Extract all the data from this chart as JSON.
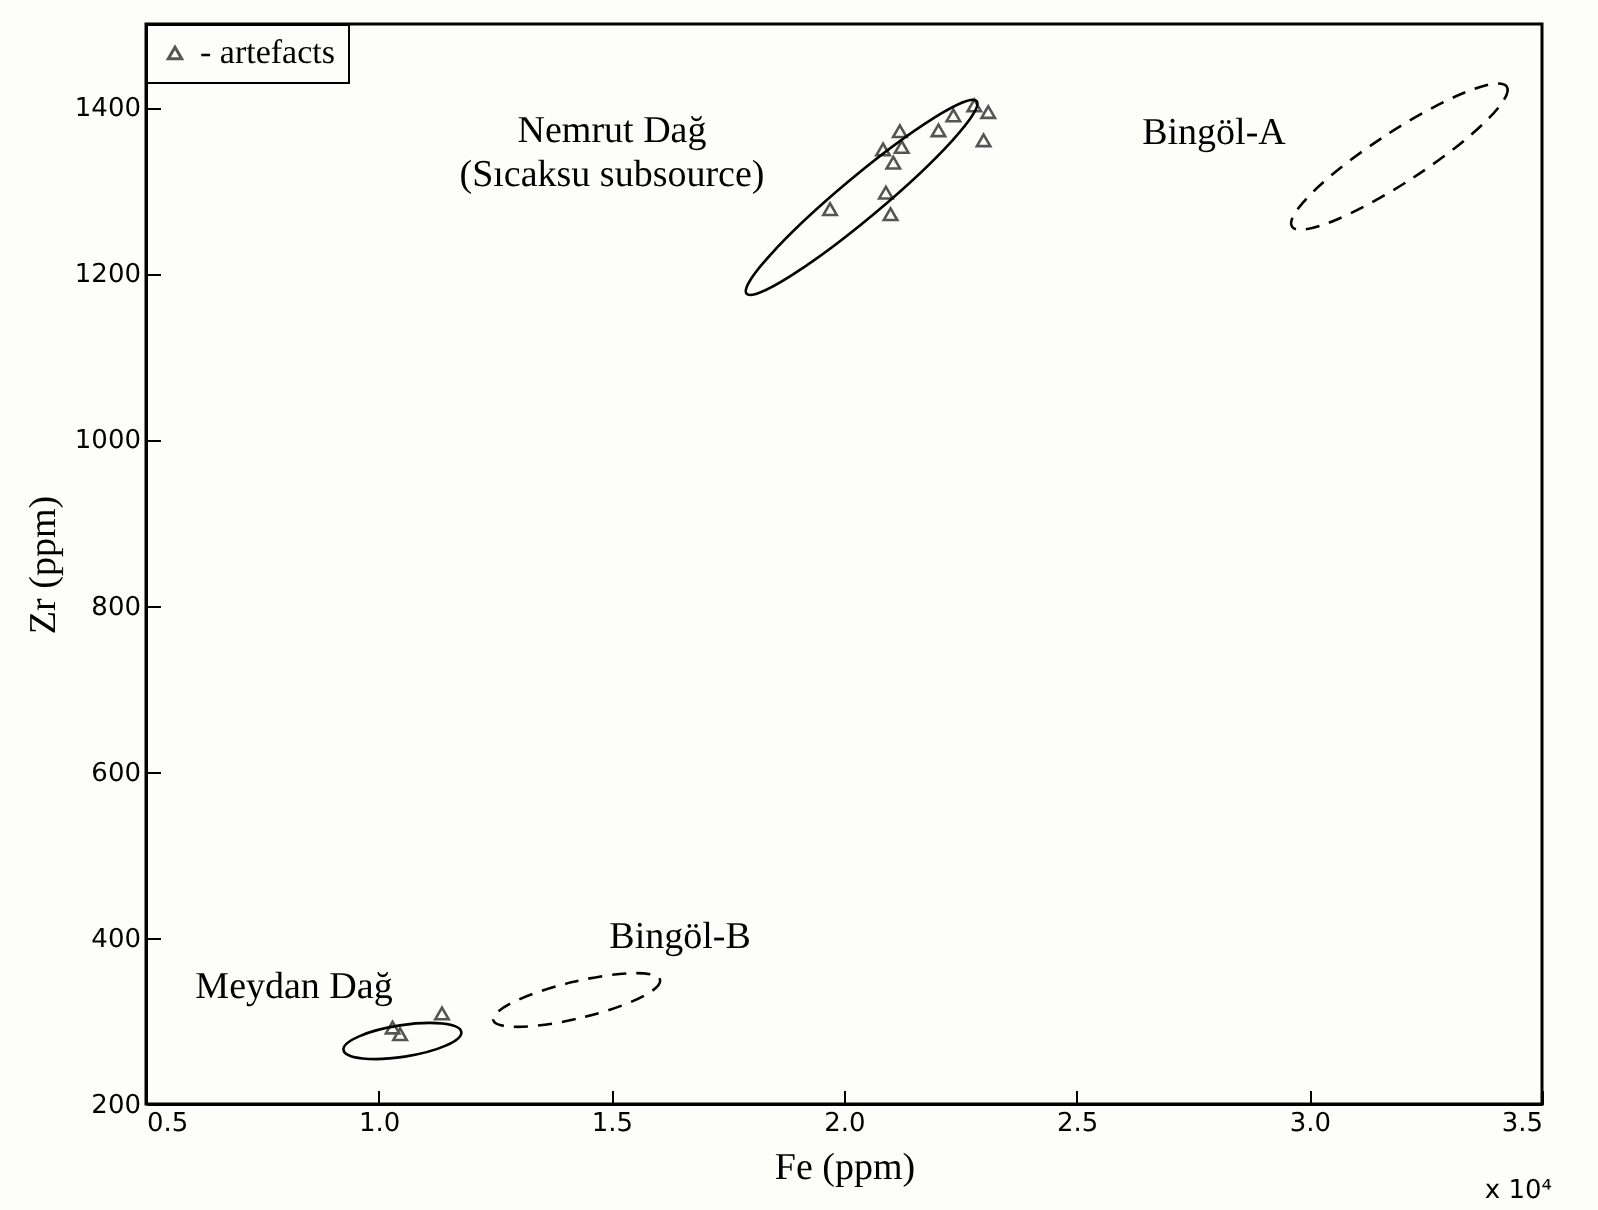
{
  "chart_data": {
    "type": "scatter",
    "xlabel": "Fe (ppm)",
    "ylabel": "Zr (ppm)",
    "xlim": [
      0.5,
      3.5
    ],
    "ylim": [
      200,
      1500
    ],
    "xticks": [
      0.5,
      {
        "value": 1,
        "label": "1.0"
      },
      1.5,
      {
        "value": 2,
        "label": "2.0"
      },
      2.5,
      {
        "value": 3,
        "label": "3.0"
      },
      3.5
    ],
    "yticks": [
      200,
      400,
      600,
      800,
      1000,
      1200,
      1400
    ],
    "legend": "top left",
    "marker": "triangle",
    "series": [
      {
        "name": "- artefacts",
        "color": "#555555",
        "x": [
          1.97,
          2.084,
          2.12,
          2.124,
          2.106,
          2.09,
          2.1,
          2.203,
          2.235,
          2.28,
          2.31,
          2.3,
          1.03,
          1.046,
          1.136
        ],
        "values": [
          1277,
          1349,
          1371,
          1352,
          1333,
          1297,
          1271,
          1372,
          1390,
          1402,
          1394,
          1360,
          292,
          284,
          309
        ]
      }
    ],
    "annotations": [
      "Nemrut Dağ\n(Sıcaksu subsource)",
      "Bingöl-A",
      "Bingöl-B",
      "Meydan Dağ",
      "x 10⁴"
    ]
  }
}
